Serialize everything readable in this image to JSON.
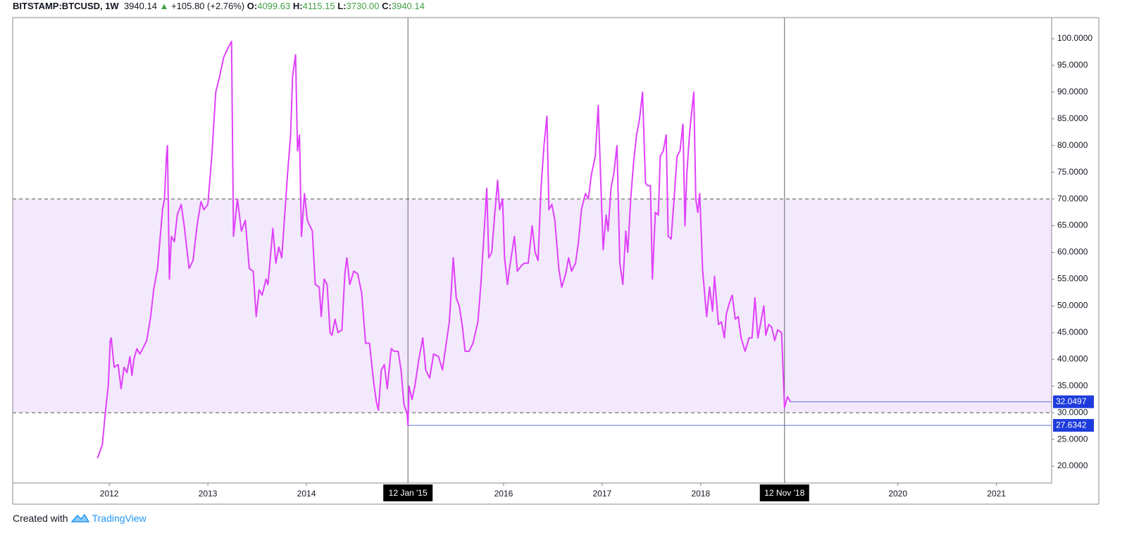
{
  "header": {
    "symbol": "BITSTAMP:BTCUSD, 1W",
    "last": "3940.14",
    "arrow": "▲",
    "change": "+105.80 (+2.76%)",
    "o_label": "O:",
    "o": "4099.63",
    "h_label": "H:",
    "h": "4115.15",
    "l_label": "L:",
    "l": "3730.00",
    "c_label": "C:",
    "c": "3940.14"
  },
  "footer": {
    "created": "Created with",
    "brand": "TradingView"
  },
  "chart_data": {
    "type": "line",
    "color": "#e040fb",
    "x": [
      2011.88,
      2011.93,
      2011.96,
      2011.99,
      2012.01,
      2012.02,
      2012.05,
      2012.09,
      2012.12,
      2012.15,
      2012.18,
      2012.21,
      2012.23,
      2012.25,
      2012.28,
      2012.31,
      2012.34,
      2012.38,
      2012.42,
      2012.45,
      2012.49,
      2012.54,
      2012.56,
      2012.58,
      2012.59,
      2012.61,
      2012.63,
      2012.66,
      2012.69,
      2012.73,
      2012.76,
      2012.81,
      2012.85,
      2012.89,
      2012.93,
      2012.96,
      2013.0,
      2013.04,
      2013.08,
      2013.12,
      2013.16,
      2013.21,
      2013.24,
      2013.26,
      2013.3,
      2013.34,
      2013.38,
      2013.42,
      2013.46,
      2013.49,
      2013.52,
      2013.55,
      2013.59,
      2013.61,
      2013.66,
      2013.69,
      2013.72,
      2013.75,
      2013.78,
      2013.81,
      2013.84,
      2013.86,
      2013.89,
      2013.91,
      2013.93,
      2013.95,
      2013.98,
      2014.01,
      2014.06,
      2014.09,
      2014.13,
      2014.15,
      2014.18,
      2014.21,
      2014.24,
      2014.26,
      2014.29,
      2014.32,
      2014.36,
      2014.39,
      2014.41,
      2014.44,
      2014.48,
      2014.52,
      2014.56,
      2014.6,
      2014.64,
      2014.68,
      2014.71,
      2014.73,
      2014.76,
      2014.79,
      2014.82,
      2014.86,
      2014.89,
      2014.93,
      2014.96,
      2014.99,
      2015.02,
      2015.03,
      2015.04,
      2015.07,
      2015.1,
      2015.14,
      2015.18,
      2015.21,
      2015.25,
      2015.29,
      2015.34,
      2015.38,
      2015.41,
      2015.45,
      2015.49,
      2015.52,
      2015.55,
      2015.58,
      2015.61,
      2015.65,
      2015.69,
      2015.74,
      2015.77,
      2015.81,
      2015.83,
      2015.85,
      2015.88,
      2015.91,
      2015.94,
      2015.96,
      2015.99,
      2016.01,
      2016.04,
      2016.06,
      2016.11,
      2016.14,
      2016.18,
      2016.21,
      2016.25,
      2016.29,
      2016.32,
      2016.35,
      2016.38,
      2016.41,
      2016.44,
      2016.46,
      2016.49,
      2016.52,
      2016.56,
      2016.59,
      2016.63,
      2016.66,
      2016.69,
      2016.73,
      2016.76,
      2016.79,
      2016.83,
      2016.86,
      2016.89,
      2016.93,
      2016.96,
      2016.99,
      2017.01,
      2017.04,
      2017.06,
      2017.09,
      2017.12,
      2017.15,
      2017.18,
      2017.21,
      2017.24,
      2017.26,
      2017.29,
      2017.32,
      2017.35,
      2017.38,
      2017.41,
      2017.44,
      2017.46,
      2017.49,
      2017.51,
      2017.54,
      2017.57,
      2017.59,
      2017.62,
      2017.65,
      2017.67,
      2017.7,
      2017.73,
      2017.76,
      2017.79,
      2017.82,
      2017.84,
      2017.86,
      2017.89,
      2017.93,
      2017.95,
      2017.97,
      2017.99,
      2018.02,
      2018.06,
      2018.09,
      2018.12,
      2018.14,
      2018.18,
      2018.21,
      2018.24,
      2018.26,
      2018.29,
      2018.32,
      2018.35,
      2018.38,
      2018.41,
      2018.45,
      2018.49,
      2018.52,
      2018.55,
      2018.58,
      2018.61,
      2018.64,
      2018.66,
      2018.69,
      2018.72,
      2018.75,
      2018.78,
      2018.82,
      2018.85,
      2018.88,
      2018.91
    ],
    "values": [
      21.5,
      24,
      30,
      35,
      43.5,
      44,
      38.5,
      39,
      34.5,
      38.5,
      37.5,
      40.5,
      37,
      40,
      42,
      41,
      42,
      43.5,
      48,
      53,
      57,
      68,
      70,
      78,
      80,
      55,
      63,
      62,
      67,
      69,
      65,
      57,
      58.5,
      65,
      69.5,
      68,
      69,
      78,
      90,
      93,
      96.5,
      98.5,
      99.5,
      63,
      70,
      64,
      66,
      57,
      56.5,
      48,
      53,
      52,
      55,
      54,
      64.5,
      58,
      61,
      59,
      67,
      75,
      82,
      93,
      97,
      79,
      82,
      63,
      71,
      66,
      64,
      54,
      53.5,
      48,
      55,
      54,
      45,
      44.5,
      47.5,
      45,
      45.5,
      56,
      59,
      54,
      56.5,
      56,
      52.5,
      43,
      43,
      36,
      32,
      30.5,
      38,
      39,
      34.5,
      42,
      41.5,
      41.5,
      38,
      31.5,
      30,
      27.6342,
      35,
      32.5,
      35,
      40,
      44,
      38,
      36.5,
      41,
      40.5,
      38,
      42,
      47,
      59,
      51.5,
      50,
      46.5,
      41.5,
      41.5,
      43,
      47,
      54,
      66,
      72,
      59,
      60,
      67,
      73.5,
      68,
      70,
      59,
      54,
      57,
      63,
      56.5,
      57.5,
      58,
      58,
      65,
      60,
      58.5,
      72,
      80,
      85.5,
      68,
      69,
      66,
      57,
      53.5,
      56,
      59,
      56.5,
      58,
      62,
      68,
      71,
      70,
      74.5,
      78,
      87.5,
      71,
      60.5,
      67,
      64,
      72,
      75,
      80,
      58,
      54,
      64,
      60,
      70,
      77,
      82,
      85,
      90,
      73,
      72.5,
      72.5,
      55,
      67.5,
      67,
      78,
      79,
      82,
      63,
      62.5,
      70,
      78,
      79,
      84,
      65,
      75,
      83,
      90,
      70,
      67.5,
      71,
      56.5,
      48,
      53.5,
      49,
      55.5,
      46.5,
      47,
      44,
      48.5,
      50.5,
      52,
      47.5,
      48,
      44,
      41.5,
      44,
      44,
      51.5,
      44,
      47,
      50,
      44.5,
      46.5,
      46,
      43.5,
      45.5,
      45,
      31,
      33,
      32.0497
    ],
    "xlim": [
      2011.02,
      2021.56
    ],
    "xticks": [
      2012,
      2013,
      2014,
      2016,
      2017,
      2018,
      2020,
      2021
    ],
    "ylim": [
      16.84,
      103.95
    ],
    "yticks": [
      {
        "value": 20,
        "label": "20.0000"
      },
      {
        "value": 25,
        "label": "25.0000"
      },
      {
        "value": 30,
        "label": "30.0000"
      },
      {
        "value": 35,
        "label": "35.0000"
      },
      {
        "value": 40,
        "label": "40.0000"
      },
      {
        "value": 45,
        "label": "45.0000"
      },
      {
        "value": 50,
        "label": "50.0000"
      },
      {
        "value": 55,
        "label": "55.0000"
      },
      {
        "value": 60,
        "label": "60.0000"
      },
      {
        "value": 65,
        "label": "65.0000"
      },
      {
        "value": 70,
        "label": "70.0000"
      },
      {
        "value": 75,
        "label": "75.0000"
      },
      {
        "value": 80,
        "label": "80.0000"
      },
      {
        "value": 85,
        "label": "85.0000"
      },
      {
        "value": 90,
        "label": "90.0000"
      },
      {
        "value": 95,
        "label": "95.0000"
      },
      {
        "value": 100,
        "label": "100.0000"
      }
    ],
    "band": {
      "upper": 70,
      "lower": 30,
      "color": "#f3e9fc"
    },
    "markers": [
      {
        "x": 2015.03,
        "label": "12 Jan '15"
      },
      {
        "x": 2018.85,
        "label": "12 Nov '18"
      }
    ],
    "levels": [
      {
        "value": 32.0497,
        "start": 2018.91
      },
      {
        "value": 27.6342,
        "start": 2015.03
      }
    ],
    "level_color": "#1e3cdc"
  }
}
